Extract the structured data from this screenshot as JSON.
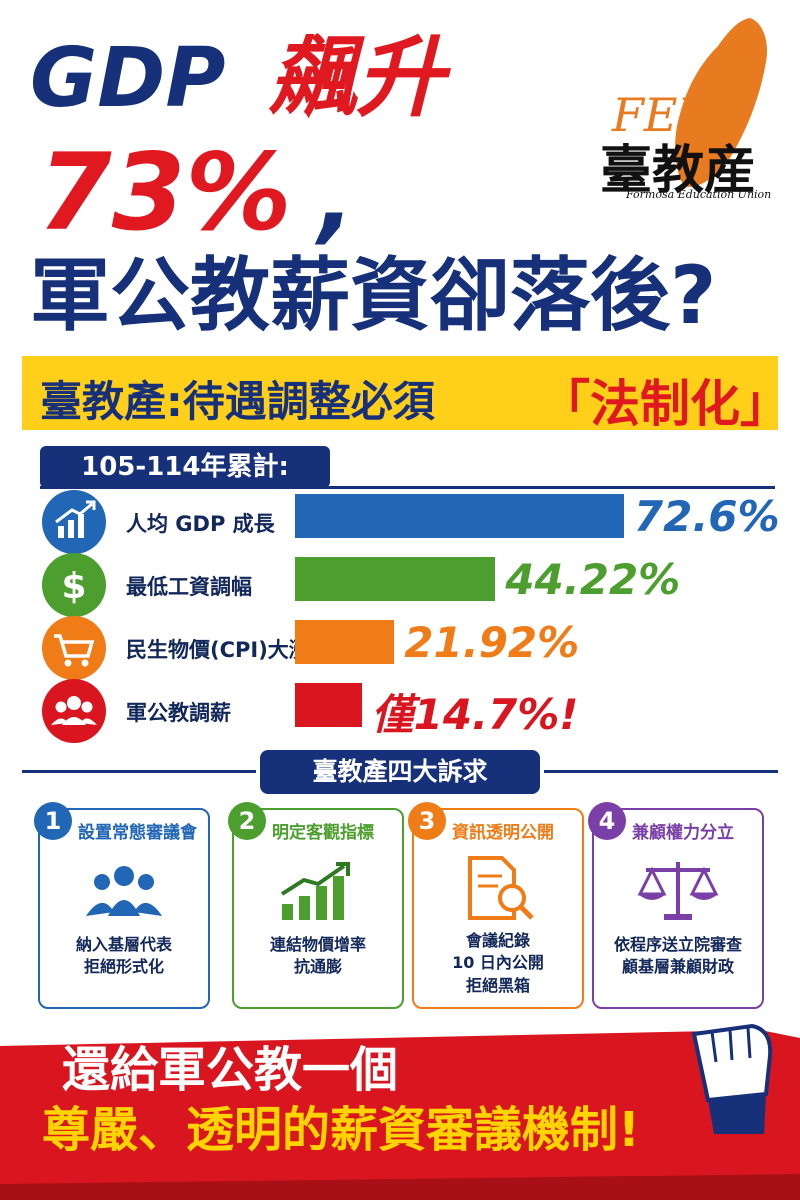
{
  "headline": {
    "line1_part1": "GDP",
    "line1_part2": "飆升",
    "line2_part1": "73%",
    "line2_part2": ",",
    "line3": "軍公教薪資卻落後?"
  },
  "logo": {
    "script": "FEU",
    "plus": "+",
    "chinese": "臺教産",
    "english": "Formosa Education Union"
  },
  "banner": {
    "left": "臺教產:待遇調整必須",
    "right": "「法制化」"
  },
  "period_label": "105-114年累計:",
  "chart_data": {
    "type": "bar",
    "orientation": "horizontal",
    "categories": [
      "人均 GDP 成長",
      "最低工資調幅",
      "民生物價(CPI)大漲",
      "軍公教調薪"
    ],
    "values": [
      72.6,
      44.22,
      21.92,
      14.7
    ],
    "value_labels": [
      "72.6%",
      "44.22%",
      "21.92%",
      "14.7%!"
    ],
    "value_prefix": [
      "",
      "",
      "",
      "僅"
    ],
    "colors": [
      "#2266b6",
      "#4c9f2f",
      "#ef7c16",
      "#d9161f"
    ],
    "icons": [
      "growth-chart-icon",
      "dollar-icon",
      "shopping-cart-icon",
      "people-group-icon"
    ],
    "grid": false
  },
  "demands": {
    "title": "臺教產四大訴求",
    "items": [
      {
        "number": "1",
        "title": "設置常態審議會",
        "icon": "people-group-icon",
        "lines": [
          "納入基層代表",
          "拒絕形式化"
        ],
        "color": "#2266b6"
      },
      {
        "number": "2",
        "title": "明定客觀指標",
        "icon": "rising-bars-icon",
        "lines": [
          "連結物價增率",
          "抗通膨"
        ],
        "color": "#4c9f2f"
      },
      {
        "number": "3",
        "title": "資訊透明公開",
        "icon": "document-search-icon",
        "lines": [
          "會議紀錄",
          "10 日內公開",
          "拒絕黑箱"
        ],
        "color": "#ef7c16"
      },
      {
        "number": "4",
        "title": "兼顧權力分立",
        "icon": "balance-scale-icon",
        "lines": [
          "依程序送立院審查",
          "顧基層兼顧財政"
        ],
        "color": "#7b3fa8"
      }
    ]
  },
  "footer": {
    "line1": "還給軍公教一個",
    "line2": "尊嚴、透明的薪資審議機制!",
    "icon": "raised-fist-icon"
  },
  "colors": {
    "navy": "#17307a",
    "red": "#e0181f",
    "yellow": "#ffcf1a",
    "orange": "#e87a1f"
  }
}
